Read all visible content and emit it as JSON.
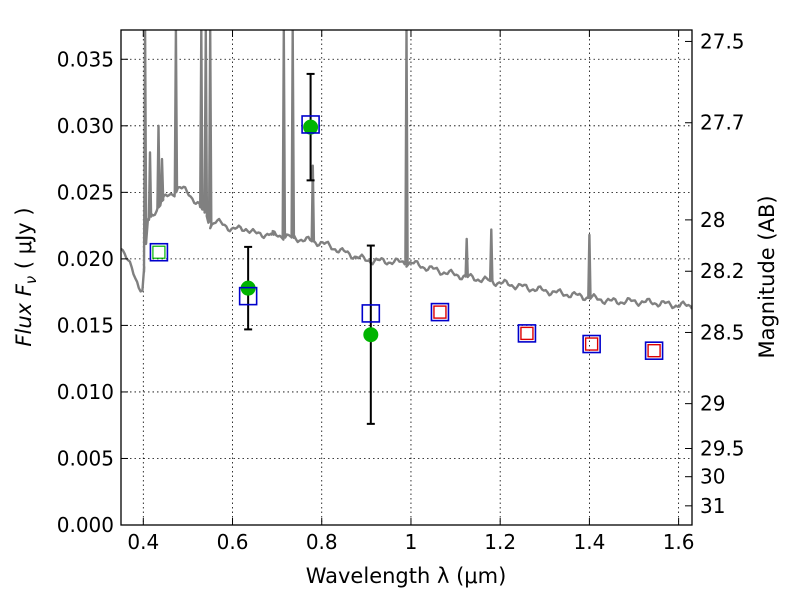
{
  "chart_data": {
    "type": "scatter",
    "xlabel": "Wavelength  λ (μm)",
    "ylabel": "Flux  F",
    "ylabel_sub": "ν",
    "ylabel_unit": "  ( μJy )",
    "y2label": "Magnitude (AB)",
    "xlim": [
      0.35,
      1.63
    ],
    "ylim": [
      0.0,
      0.0372
    ],
    "grid": true,
    "x_ticks": [
      0.4,
      0.6,
      0.8,
      1.0,
      1.2,
      1.4,
      1.6
    ],
    "x_tick_labels": [
      "0.4",
      "0.6",
      "0.8",
      "1",
      "1.2",
      "1.4",
      "1.6"
    ],
    "y_ticks": [
      0.0,
      0.005,
      0.01,
      0.015,
      0.02,
      0.025,
      0.03,
      0.035
    ],
    "y_tick_labels": [
      "0.000",
      "0.005",
      "0.010",
      "0.015",
      "0.020",
      "0.025",
      "0.030",
      "0.035"
    ],
    "y2_ticks": [
      {
        "label": "27.5",
        "flux": 0.03634
      },
      {
        "label": "27.7",
        "flux": 0.03023
      },
      {
        "label": "28",
        "flux": 0.02293
      },
      {
        "label": "28.2",
        "flux": 0.01907
      },
      {
        "label": "28.5",
        "flux": 0.01447
      },
      {
        "label": "29",
        "flux": 0.00912
      },
      {
        "label": "29.5",
        "flux": 0.00575
      },
      {
        "label": "30",
        "flux": 0.00363
      },
      {
        "label": "31",
        "flux": 0.00144
      }
    ],
    "colors": {
      "model": "#808080",
      "observed": "#00b400",
      "model_box": "#0000cc",
      "model_box_small": "#dd0000",
      "error": "#000000"
    },
    "series": [
      {
        "kind": "line",
        "x": [
          0.35,
          0.37,
          0.39,
          0.399,
          0.401,
          0.41,
          0.42,
          0.43,
          0.44,
          0.45,
          0.46,
          0.47,
          0.48,
          0.5,
          0.52,
          0.535,
          0.545,
          0.55,
          0.56,
          0.58,
          0.6,
          0.63,
          0.65,
          0.7,
          0.75,
          0.8,
          0.85,
          0.9,
          0.95,
          1.0,
          1.05,
          1.1,
          1.2,
          1.3,
          1.4,
          1.45,
          1.5,
          1.55,
          1.6,
          1.63
        ],
        "y": [
          0.021,
          0.0195,
          0.018,
          0.0176,
          0.0188,
          0.0228,
          0.0233,
          0.0237,
          0.0243,
          0.0246,
          0.0248,
          0.025,
          0.0254,
          0.025,
          0.0242,
          0.0236,
          0.0231,
          0.0225,
          0.0228,
          0.0226,
          0.0222,
          0.0223,
          0.0219,
          0.0218,
          0.0215,
          0.0212,
          0.0205,
          0.0199,
          0.0198,
          0.0197,
          0.0192,
          0.0188,
          0.0182,
          0.0176,
          0.0171,
          0.0168,
          0.0168,
          0.0167,
          0.0165,
          0.0165
        ]
      },
      {
        "kind": "observed",
        "x": [
          0.635,
          0.775,
          0.91
        ],
        "y": [
          0.0178,
          0.0299,
          0.0143
        ],
        "err": [
          0.0031,
          0.004,
          0.0067
        ]
      },
      {
        "kind": "model_box",
        "x": [
          0.435,
          0.635,
          0.775,
          0.91,
          1.065,
          1.26,
          1.405,
          1.545
        ],
        "y": [
          0.0205,
          0.0172,
          0.0301,
          0.0159,
          0.016,
          0.0144,
          0.0136,
          0.0131
        ]
      },
      {
        "kind": "model_box_small",
        "x": [
          1.065,
          1.26,
          1.405,
          1.545
        ],
        "y": [
          0.016,
          0.0144,
          0.0136,
          0.0131
        ]
      }
    ],
    "emission_lines": [
      {
        "x": 0.404,
        "peak": 0.0372
      },
      {
        "x": 0.415,
        "peak": 0.028
      },
      {
        "x": 0.434,
        "peak": 0.03
      },
      {
        "x": 0.442,
        "peak": 0.0275
      },
      {
        "x": 0.473,
        "peak": 0.0372
      },
      {
        "x": 0.53,
        "peak": 0.0372
      },
      {
        "x": 0.54,
        "peak": 0.0372
      },
      {
        "x": 0.55,
        "peak": 0.0372
      },
      {
        "x": 0.69,
        "peak": 0.022
      },
      {
        "x": 0.715,
        "peak": 0.0372
      },
      {
        "x": 0.735,
        "peak": 0.0372
      },
      {
        "x": 0.78,
        "peak": 0.027
      },
      {
        "x": 0.99,
        "peak": 0.0372
      },
      {
        "x": 1.125,
        "peak": 0.0215
      },
      {
        "x": 1.18,
        "peak": 0.0222
      },
      {
        "x": 1.4,
        "peak": 0.0218
      }
    ]
  }
}
